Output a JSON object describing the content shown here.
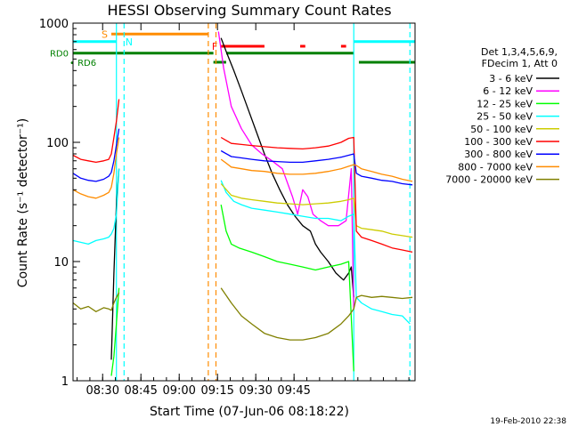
{
  "chart_data": {
    "type": "line",
    "title": "HESSI Observing Summary Count Rates",
    "xlabel": "Start Time (07-Jun-06 08:18:22)",
    "ylabel": "Count Rate (s⁻¹ detector⁻¹)",
    "ylog": true,
    "ylim": [
      1,
      1000
    ],
    "x_units": "minutes since 08:18:22",
    "xlim": [
      0,
      134
    ],
    "x_ticks": [
      {
        "at": 11.6,
        "label": "08:30"
      },
      {
        "at": 26.6,
        "label": "08:45"
      },
      {
        "at": 41.6,
        "label": "09:00"
      },
      {
        "at": 56.6,
        "label": "09:15"
      },
      {
        "at": 71.6,
        "label": "09:30"
      },
      {
        "at": 86.6,
        "label": "09:45"
      }
    ],
    "y_ticks": [
      {
        "at": 1,
        "label": "1"
      },
      {
        "at": 10,
        "label": "10"
      },
      {
        "at": 100,
        "label": "100"
      },
      {
        "at": 1000,
        "label": "1000"
      }
    ],
    "grid": false,
    "legend_placement": "right",
    "legend_header": [
      "Det 1,3,4,5,6,9,",
      "FDecim 1, Att 0"
    ],
    "footer": "19-Feb-2010 22:38",
    "flags": [
      {
        "label": "S",
        "color": "#ff8c00",
        "x0": 15,
        "x1": 53,
        "y": 810
      },
      {
        "label": "N",
        "color": "#00ffff",
        "x0": 0,
        "x1": 17,
        "y": 700
      },
      {
        "label": "N",
        "color": "#00ffff",
        "x0": 110,
        "x1": 134,
        "y": 700
      },
      {
        "label": "F",
        "color": "#ff0000",
        "x0": 58,
        "x1": 75,
        "y": 640
      },
      {
        "label": "F",
        "color": "#ff0000",
        "x0": 89,
        "x1": 91,
        "y": 640
      },
      {
        "label": "F",
        "color": "#ff0000",
        "x0": 105,
        "x1": 107,
        "y": 640
      },
      {
        "label": "RD0",
        "color": "#008000",
        "x0": 0,
        "x1": 55,
        "y": 560
      },
      {
        "label": "RD0",
        "color": "#008000",
        "x0": 60,
        "x1": 110,
        "y": 560
      },
      {
        "label": "RD6",
        "color": "#008000",
        "x0": 55,
        "x1": 60,
        "y": 470
      },
      {
        "label": "RD6",
        "color": "#008000",
        "x0": 112,
        "x1": 134,
        "y": 470
      }
    ],
    "vlines": [
      {
        "x": 17,
        "color": "#00ffff",
        "dash": false
      },
      {
        "x": 20,
        "color": "#00ffff",
        "dash": true
      },
      {
        "x": 53,
        "color": "#ff8c00",
        "dash": true
      },
      {
        "x": 56,
        "color": "#ff8c00",
        "dash": true
      },
      {
        "x": 110,
        "color": "#00ffff",
        "dash": false
      },
      {
        "x": 132,
        "color": "#00ffff",
        "dash": true
      }
    ],
    "series": [
      {
        "name": "3 - 6 keV",
        "color": "#000000",
        "x": [
          0,
          14,
          15,
          16,
          17,
          18,
          56,
          58,
          60,
          63,
          66,
          69,
          72,
          75,
          78,
          81,
          84,
          87,
          90,
          93,
          95,
          97,
          100,
          103,
          106,
          108,
          109,
          110,
          111
        ],
        "y": [
          null,
          null,
          1.5,
          8,
          30,
          60,
          null,
          750,
          580,
          400,
          270,
          180,
          120,
          80,
          55,
          40,
          30,
          24,
          20,
          18,
          14,
          12,
          10,
          8,
          7,
          8,
          9,
          5,
          null
        ]
      },
      {
        "name": "6 - 12 keV",
        "color": "#ff00ff",
        "x": [
          55,
          57,
          59,
          62,
          66,
          70,
          74,
          78,
          82,
          86,
          88,
          90,
          92,
          94,
          97,
          100,
          104,
          107,
          109,
          110,
          111
        ],
        "y": [
          null,
          850,
          420,
          200,
          130,
          95,
          80,
          70,
          60,
          35,
          25,
          40,
          35,
          25,
          22,
          20,
          20,
          22,
          60,
          4,
          null
        ]
      },
      {
        "name": "12 - 25 keV",
        "color": "#00ff00",
        "x": [
          0,
          14,
          15,
          16,
          17,
          18,
          57,
          58,
          60,
          62,
          65,
          70,
          75,
          80,
          85,
          90,
          95,
          100,
          105,
          108,
          110,
          111
        ],
        "y": [
          null,
          null,
          1.1,
          1.6,
          3,
          6,
          null,
          30,
          18,
          14,
          13,
          12,
          11,
          10,
          9.5,
          9,
          8.5,
          9,
          9.5,
          10,
          1.2,
          null
        ]
      },
      {
        "name": "25 - 50 keV",
        "color": "#00ffff",
        "x": [
          0,
          3,
          6,
          9,
          12,
          14,
          15,
          16,
          17,
          18,
          57,
          58,
          60,
          63,
          66,
          70,
          75,
          80,
          85,
          90,
          95,
          100,
          105,
          108,
          110,
          111,
          113,
          117,
          121,
          125,
          129,
          132
        ],
        "y": [
          15,
          14.5,
          14,
          15,
          15.5,
          16,
          17,
          19,
          25,
          60,
          null,
          48,
          38,
          32,
          30,
          28,
          27,
          26,
          25,
          24,
          23,
          23,
          22,
          24,
          25,
          5,
          4.5,
          4,
          3.8,
          3.6,
          3.5,
          3
        ]
      },
      {
        "name": "50 - 100 keV",
        "color": "#cccc00",
        "x": [
          57,
          58,
          62,
          66,
          70,
          75,
          80,
          85,
          90,
          95,
          100,
          105,
          108,
          110,
          111,
          113,
          117,
          121,
          125,
          129,
          133
        ],
        "y": [
          null,
          45,
          36,
          34,
          33,
          32,
          31,
          30.5,
          30,
          30.5,
          31,
          32,
          33,
          34,
          20,
          19,
          18.5,
          18,
          17,
          16.5,
          16
        ]
      },
      {
        "name": "100 - 300 keV",
        "color": "#ff0000",
        "x": [
          0,
          3,
          6,
          9,
          12,
          14,
          15,
          16,
          17,
          18,
          57,
          58,
          62,
          66,
          70,
          75,
          80,
          85,
          90,
          95,
          100,
          105,
          108,
          110,
          111,
          113,
          117,
          121,
          125,
          129,
          133
        ],
        "y": [
          78,
          72,
          70,
          68,
          70,
          72,
          80,
          110,
          150,
          230,
          null,
          110,
          98,
          96,
          94,
          92,
          90,
          89,
          88,
          90,
          93,
          100,
          108,
          110,
          18,
          16,
          15,
          14,
          13,
          12.5,
          12
        ]
      },
      {
        "name": "300 - 800 keV",
        "color": "#0000ff",
        "x": [
          0,
          3,
          6,
          9,
          12,
          14,
          15,
          16,
          17,
          18,
          57,
          58,
          62,
          66,
          70,
          75,
          80,
          85,
          90,
          95,
          100,
          105,
          108,
          110,
          111,
          113,
          117,
          121,
          125,
          129,
          133
        ],
        "y": [
          55,
          50,
          48,
          47,
          49,
          52,
          56,
          70,
          95,
          130,
          null,
          85,
          76,
          74,
          72,
          70,
          69,
          68,
          68,
          70,
          72,
          75,
          78,
          80,
          55,
          52,
          50,
          48,
          47,
          45,
          44
        ]
      },
      {
        "name": "800 - 7000 keV",
        "color": "#ff8c00",
        "x": [
          0,
          3,
          6,
          9,
          12,
          14,
          15,
          16,
          17,
          18,
          57,
          58,
          62,
          66,
          70,
          75,
          80,
          85,
          90,
          95,
          100,
          105,
          108,
          110,
          111,
          113,
          117,
          121,
          125,
          129,
          133
        ],
        "y": [
          40,
          37,
          35,
          34,
          36,
          38,
          42,
          55,
          80,
          110,
          null,
          72,
          62,
          60,
          58,
          57,
          55,
          54,
          54,
          55,
          57,
          60,
          63,
          65,
          64,
          60,
          57,
          54,
          52,
          49,
          47
        ]
      },
      {
        "name": "7000 - 20000 keV",
        "color": "#808000",
        "x": [
          0,
          3,
          6,
          9,
          12,
          14,
          15,
          16,
          17,
          18,
          57,
          58,
          62,
          66,
          70,
          75,
          80,
          85,
          90,
          95,
          100,
          105,
          108,
          110,
          111,
          113,
          117,
          121,
          125,
          129,
          133
        ],
        "y": [
          4.5,
          4,
          4.2,
          3.8,
          4.1,
          4,
          3.9,
          4.5,
          5,
          5.5,
          null,
          6,
          4.5,
          3.5,
          3,
          2.5,
          2.3,
          2.2,
          2.2,
          2.3,
          2.5,
          3,
          3.5,
          4,
          5,
          5.2,
          5,
          5.1,
          5,
          4.9,
          5
        ]
      }
    ]
  }
}
